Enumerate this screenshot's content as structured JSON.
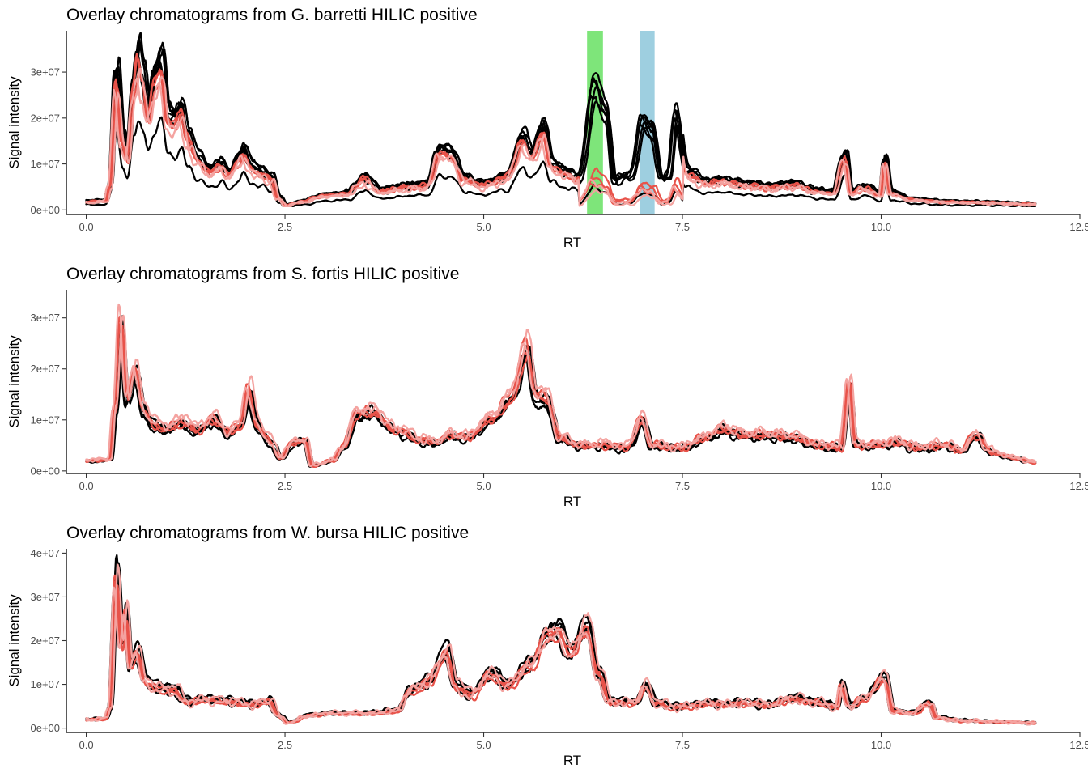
{
  "chart_data": [
    {
      "type": "line",
      "title": "Overlay chromatograms from G. barretti HILIC positive",
      "xlabel": "RT",
      "ylabel": "Signal intensity",
      "xlim": [
        -0.25,
        12.5
      ],
      "ylim": [
        -1000000,
        39000000
      ],
      "xticks": [
        0.0,
        2.5,
        5.0,
        7.5,
        10.0,
        12.5
      ],
      "xtick_labels": [
        "0.0",
        "2.5",
        "5.0",
        "7.5",
        "10.0",
        "12.5"
      ],
      "yticks": [
        0,
        10000000,
        20000000,
        30000000
      ],
      "ytick_labels": [
        "0e+00",
        "1e+07",
        "2e+07",
        "3e+07"
      ],
      "grid": false,
      "legend": "none",
      "highlights": [
        {
          "xmin": 6.3,
          "xmax": 6.5,
          "color": "#7ee57a"
        },
        {
          "xmin": 6.97,
          "xmax": 7.15,
          "color": "#9ecfe0"
        }
      ],
      "colors": {
        "dark": "#000000",
        "red": "#e8534a",
        "light": "#f4a3a0"
      },
      "base": [
        [
          0.0,
          2000000
        ],
        [
          0.25,
          2200000
        ],
        [
          0.3,
          6000000
        ],
        [
          0.38,
          31000000
        ],
        [
          0.46,
          17000000
        ],
        [
          0.52,
          12000000
        ],
        [
          0.6,
          30000000
        ],
        [
          0.66,
          36500000
        ],
        [
          0.72,
          31000000
        ],
        [
          0.78,
          23000000
        ],
        [
          0.86,
          31000000
        ],
        [
          0.95,
          35000000
        ],
        [
          1.03,
          22000000
        ],
        [
          1.12,
          21000000
        ],
        [
          1.2,
          24000000
        ],
        [
          1.28,
          17000000
        ],
        [
          1.42,
          12000000
        ],
        [
          1.55,
          9500000
        ],
        [
          1.7,
          11000000
        ],
        [
          1.8,
          8500000
        ],
        [
          1.92,
          12000000
        ],
        [
          1.98,
          14000000
        ],
        [
          2.08,
          10000000
        ],
        [
          2.2,
          9000000
        ],
        [
          2.33,
          7500000
        ],
        [
          2.42,
          3000000
        ],
        [
          2.52,
          1000000
        ],
        [
          2.7,
          2000000
        ],
        [
          3.0,
          3500000
        ],
        [
          3.3,
          4000000
        ],
        [
          3.5,
          7500000
        ],
        [
          3.7,
          4500000
        ],
        [
          4.0,
          5500000
        ],
        [
          4.3,
          6000000
        ],
        [
          4.45,
          14000000
        ],
        [
          4.6,
          13000000
        ],
        [
          4.75,
          7500000
        ],
        [
          5.0,
          6000000
        ],
        [
          5.3,
          8000000
        ],
        [
          5.5,
          17000000
        ],
        [
          5.6,
          13000000
        ],
        [
          5.75,
          19000000
        ],
        [
          5.85,
          11000000
        ],
        [
          6.0,
          9000000
        ],
        [
          6.2,
          7500000
        ],
        [
          6.4,
          28000000
        ],
        [
          6.55,
          22000000
        ],
        [
          6.65,
          7000000
        ],
        [
          6.85,
          8000000
        ],
        [
          7.0,
          20000000
        ],
        [
          7.12,
          18000000
        ],
        [
          7.25,
          7000000
        ],
        [
          7.32,
          8000000
        ],
        [
          7.42,
          22000000
        ],
        [
          7.55,
          9000000
        ],
        [
          7.8,
          6500000
        ],
        [
          8.0,
          7000000
        ],
        [
          8.3,
          6000000
        ],
        [
          8.6,
          5500000
        ],
        [
          8.9,
          6000000
        ],
        [
          9.2,
          4500000
        ],
        [
          9.4,
          4000000
        ],
        [
          9.55,
          13000000
        ],
        [
          9.62,
          4000000
        ],
        [
          9.8,
          5500000
        ],
        [
          10.0,
          3500000
        ],
        [
          10.05,
          12000000
        ],
        [
          10.12,
          4000000
        ],
        [
          10.4,
          2500000
        ],
        [
          10.8,
          2000000
        ],
        [
          11.3,
          1800000
        ],
        [
          11.95,
          1400000
        ]
      ],
      "series": [
        {
          "color": "dark",
          "width": 2.3,
          "offset": 0.0,
          "scale": 1.0,
          "peak_scale": 1.05,
          "noise": 0.05,
          "seed": 1
        },
        {
          "color": "dark",
          "width": 2.3,
          "offset": 0.02,
          "scale": 0.97,
          "peak_scale": 1.0,
          "noise": 0.06,
          "seed": 2
        },
        {
          "color": "dark",
          "width": 2.3,
          "offset": -0.02,
          "scale": 1.02,
          "peak_scale": 0.95,
          "noise": 0.06,
          "seed": 3
        },
        {
          "color": "dark",
          "width": 2.3,
          "offset": 0.03,
          "scale": 0.95,
          "peak_scale": 0.9,
          "noise": 0.07,
          "seed": 4
        },
        {
          "color": "dark",
          "width": 2.3,
          "offset": -0.03,
          "scale": 1.0,
          "peak_scale": 0.85,
          "noise": 0.07,
          "seed": 5
        },
        {
          "color": "dark",
          "width": 2.3,
          "offset": 0.01,
          "scale": 0.9,
          "peak_scale": 1.0,
          "noise": 0.08,
          "seed": 6
        },
        {
          "color": "dark",
          "width": 2.3,
          "offset": 0.0,
          "scale": 0.55,
          "peak_scale": 0.18,
          "noise": 0.06,
          "seed": 7
        },
        {
          "color": "red",
          "width": 2.3,
          "offset": 0.01,
          "scale": 0.9,
          "peak_scale": 0.25,
          "noise": 0.06,
          "seed": 8
        },
        {
          "color": "red",
          "width": 2.3,
          "offset": -0.01,
          "scale": 0.85,
          "peak_scale": 0.3,
          "noise": 0.07,
          "seed": 9
        },
        {
          "color": "red",
          "width": 2.3,
          "offset": 0.02,
          "scale": 0.88,
          "peak_scale": 0.2,
          "noise": 0.07,
          "seed": 10
        },
        {
          "color": "light",
          "width": 2.3,
          "offset": -0.02,
          "scale": 0.82,
          "peak_scale": 0.15,
          "noise": 0.08,
          "seed": 11
        },
        {
          "color": "light",
          "width": 2.3,
          "offset": 0.03,
          "scale": 0.8,
          "peak_scale": 0.22,
          "noise": 0.09,
          "seed": 12
        }
      ]
    },
    {
      "type": "line",
      "title": "Overlay chromatograms from S. fortis HILIC positive",
      "xlabel": "RT",
      "ylabel": "Signal intensity",
      "xlim": [
        -0.25,
        12.5
      ],
      "ylim": [
        -500000,
        35500000
      ],
      "xticks": [
        0.0,
        2.5,
        5.0,
        7.5,
        10.0,
        12.5
      ],
      "xtick_labels": [
        "0.0",
        "2.5",
        "5.0",
        "7.5",
        "10.0",
        "12.5"
      ],
      "yticks": [
        0,
        10000000,
        20000000,
        30000000
      ],
      "ytick_labels": [
        "0e+00",
        "1e+07",
        "2e+07",
        "3e+07"
      ],
      "grid": false,
      "legend": "none",
      "highlights": [],
      "colors": {
        "dark": "#000000",
        "red": "#e8534a",
        "light": "#f4a3a0"
      },
      "base": [
        [
          0.0,
          2000000
        ],
        [
          0.3,
          2200000
        ],
        [
          0.36,
          12000000
        ],
        [
          0.44,
          29000000
        ],
        [
          0.52,
          14000000
        ],
        [
          0.62,
          20000000
        ],
        [
          0.72,
          12000000
        ],
        [
          0.85,
          9000000
        ],
        [
          1.0,
          8000000
        ],
        [
          1.2,
          9500000
        ],
        [
          1.4,
          8000000
        ],
        [
          1.6,
          10000000
        ],
        [
          1.8,
          7500000
        ],
        [
          1.95,
          9000000
        ],
        [
          2.05,
          16000000
        ],
        [
          2.15,
          9000000
        ],
        [
          2.3,
          6000000
        ],
        [
          2.45,
          2500000
        ],
        [
          2.6,
          5500000
        ],
        [
          2.75,
          6000000
        ],
        [
          2.85,
          1000000
        ],
        [
          3.1,
          2000000
        ],
        [
          3.25,
          5000000
        ],
        [
          3.4,
          11000000
        ],
        [
          3.6,
          11500000
        ],
        [
          3.9,
          8000000
        ],
        [
          4.2,
          6000000
        ],
        [
          4.45,
          5500000
        ],
        [
          4.55,
          7000000
        ],
        [
          4.8,
          6500000
        ],
        [
          5.1,
          10000000
        ],
        [
          5.35,
          14000000
        ],
        [
          5.55,
          24000000
        ],
        [
          5.65,
          15000000
        ],
        [
          5.8,
          14000000
        ],
        [
          5.95,
          6500000
        ],
        [
          6.2,
          5000000
        ],
        [
          6.5,
          5000000
        ],
        [
          6.8,
          4500000
        ],
        [
          7.0,
          10000000
        ],
        [
          7.1,
          5000000
        ],
        [
          7.5,
          4500000
        ],
        [
          7.8,
          6500000
        ],
        [
          8.0,
          8000000
        ],
        [
          8.3,
          7000000
        ],
        [
          8.6,
          7000000
        ],
        [
          8.9,
          6500000
        ],
        [
          9.2,
          5000000
        ],
        [
          9.5,
          4500000
        ],
        [
          9.6,
          17000000
        ],
        [
          9.68,
          5000000
        ],
        [
          9.85,
          5000000
        ],
        [
          10.2,
          5500000
        ],
        [
          10.5,
          4500000
        ],
        [
          10.8,
          5000000
        ],
        [
          11.0,
          4000000
        ],
        [
          11.2,
          7000000
        ],
        [
          11.4,
          3500000
        ],
        [
          11.7,
          2500000
        ],
        [
          11.95,
          1600000
        ]
      ],
      "series": [
        {
          "color": "dark",
          "width": 2.3,
          "offset": 0.0,
          "scale": 1.0,
          "peak_scale": 1.0,
          "noise": 0.06,
          "seed": 21
        },
        {
          "color": "dark",
          "width": 2.3,
          "offset": 0.02,
          "scale": 0.95,
          "peak_scale": 1.0,
          "noise": 0.07,
          "seed": 22
        },
        {
          "color": "dark",
          "width": 2.3,
          "offset": -0.02,
          "scale": 1.03,
          "peak_scale": 1.0,
          "noise": 0.07,
          "seed": 23
        },
        {
          "color": "dark",
          "width": 2.3,
          "offset": 0.03,
          "scale": 0.92,
          "peak_scale": 1.0,
          "noise": 0.08,
          "seed": 24
        },
        {
          "color": "dark",
          "width": 2.3,
          "offset": -0.03,
          "scale": 0.98,
          "peak_scale": 1.0,
          "noise": 0.08,
          "seed": 25
        },
        {
          "color": "red",
          "width": 2.3,
          "offset": 0.01,
          "scale": 1.0,
          "peak_scale": 1.0,
          "noise": 0.06,
          "seed": 26
        },
        {
          "color": "red",
          "width": 2.3,
          "offset": -0.01,
          "scale": 0.96,
          "peak_scale": 1.0,
          "noise": 0.07,
          "seed": 27
        },
        {
          "color": "red",
          "width": 2.3,
          "offset": 0.02,
          "scale": 1.05,
          "peak_scale": 1.0,
          "noise": 0.07,
          "seed": 28
        },
        {
          "color": "light",
          "width": 2.3,
          "offset": -0.02,
          "scale": 1.1,
          "peak_scale": 1.0,
          "noise": 0.09,
          "seed": 29
        },
        {
          "color": "light",
          "width": 2.3,
          "offset": 0.03,
          "scale": 1.05,
          "peak_scale": 1.0,
          "noise": 0.1,
          "seed": 30
        }
      ]
    },
    {
      "type": "line",
      "title": "Overlay chromatograms from W. bursa HILIC positive",
      "xlabel": "RT",
      "ylabel": "Signal intensity",
      "xlim": [
        -0.25,
        12.5
      ],
      "ylim": [
        -1000000,
        41000000
      ],
      "xticks": [
        0.0,
        2.5,
        5.0,
        7.5,
        10.0,
        12.5
      ],
      "xtick_labels": [
        "0.0",
        "2.5",
        "5.0",
        "7.5",
        "10.0",
        "12.5"
      ],
      "yticks": [
        0,
        10000000,
        20000000,
        30000000,
        40000000
      ],
      "ytick_labels": [
        "0e+00",
        "1e+07",
        "2e+07",
        "3e+07",
        "4e+07"
      ],
      "grid": false,
      "legend": "none",
      "highlights": [],
      "colors": {
        "dark": "#000000",
        "red": "#e8534a",
        "light": "#f4a3a0"
      },
      "base": [
        [
          0.0,
          2000000
        ],
        [
          0.25,
          2200000
        ],
        [
          0.3,
          5000000
        ],
        [
          0.38,
          36000000
        ],
        [
          0.45,
          20000000
        ],
        [
          0.5,
          27000000
        ],
        [
          0.56,
          15000000
        ],
        [
          0.65,
          18000000
        ],
        [
          0.75,
          11000000
        ],
        [
          0.9,
          9500000
        ],
        [
          1.1,
          9000000
        ],
        [
          1.3,
          6000000
        ],
        [
          1.5,
          7000000
        ],
        [
          1.7,
          6500000
        ],
        [
          1.9,
          6000000
        ],
        [
          2.1,
          5500000
        ],
        [
          2.3,
          6500000
        ],
        [
          2.45,
          2500000
        ],
        [
          2.55,
          1200000
        ],
        [
          2.8,
          3000000
        ],
        [
          3.1,
          3500000
        ],
        [
          3.5,
          3500000
        ],
        [
          3.9,
          4000000
        ],
        [
          4.1,
          9000000
        ],
        [
          4.3,
          11000000
        ],
        [
          4.55,
          18000000
        ],
        [
          4.65,
          10000000
        ],
        [
          4.85,
          8000000
        ],
        [
          5.1,
          13000000
        ],
        [
          5.3,
          10000000
        ],
        [
          5.6,
          15000000
        ],
        [
          5.8,
          22000000
        ],
        [
          5.95,
          23000000
        ],
        [
          6.1,
          18000000
        ],
        [
          6.3,
          24000000
        ],
        [
          6.45,
          13000000
        ],
        [
          6.6,
          6000000
        ],
        [
          6.9,
          6000000
        ],
        [
          7.05,
          10000000
        ],
        [
          7.15,
          6000000
        ],
        [
          7.4,
          5000000
        ],
        [
          7.7,
          5500000
        ],
        [
          7.82,
          6000000
        ],
        [
          8.0,
          5500000
        ],
        [
          8.3,
          6000000
        ],
        [
          8.6,
          5500000
        ],
        [
          8.9,
          7000000
        ],
        [
          9.2,
          6000000
        ],
        [
          9.45,
          5000000
        ],
        [
          9.5,
          10000000
        ],
        [
          9.6,
          5000000
        ],
        [
          9.8,
          7000000
        ],
        [
          10.05,
          12000000
        ],
        [
          10.15,
          4000000
        ],
        [
          10.4,
          3500000
        ],
        [
          10.6,
          6000000
        ],
        [
          10.7,
          2500000
        ],
        [
          11.0,
          1800000
        ],
        [
          11.5,
          1500000
        ],
        [
          11.95,
          1200000
        ]
      ],
      "series": [
        {
          "color": "dark",
          "width": 2.3,
          "offset": 0.0,
          "scale": 1.08,
          "peak_scale": 1.0,
          "noise": 0.06,
          "seed": 41
        },
        {
          "color": "dark",
          "width": 2.3,
          "offset": 0.02,
          "scale": 0.95,
          "peak_scale": 1.0,
          "noise": 0.07,
          "seed": 42
        },
        {
          "color": "dark",
          "width": 2.3,
          "offset": -0.02,
          "scale": 1.0,
          "peak_scale": 1.0,
          "noise": 0.07,
          "seed": 43
        },
        {
          "color": "dark",
          "width": 2.3,
          "offset": 0.03,
          "scale": 0.9,
          "peak_scale": 1.0,
          "noise": 0.08,
          "seed": 44
        },
        {
          "color": "dark",
          "width": 2.3,
          "offset": -0.03,
          "scale": 1.02,
          "peak_scale": 1.0,
          "noise": 0.08,
          "seed": 45
        },
        {
          "color": "red",
          "width": 2.3,
          "offset": 0.01,
          "scale": 0.95,
          "peak_scale": 1.0,
          "noise": 0.06,
          "seed": 46
        },
        {
          "color": "red",
          "width": 2.3,
          "offset": -0.01,
          "scale": 0.9,
          "peak_scale": 1.0,
          "noise": 0.07,
          "seed": 47
        },
        {
          "color": "red",
          "width": 2.3,
          "offset": 0.02,
          "scale": 0.98,
          "peak_scale": 1.0,
          "noise": 0.07,
          "seed": 48
        },
        {
          "color": "light",
          "width": 2.3,
          "offset": -0.02,
          "scale": 1.05,
          "peak_scale": 1.0,
          "noise": 0.09,
          "seed": 49
        },
        {
          "color": "light",
          "width": 2.3,
          "offset": 0.03,
          "scale": 0.92,
          "peak_scale": 1.0,
          "noise": 0.1,
          "seed": 50
        }
      ]
    }
  ]
}
